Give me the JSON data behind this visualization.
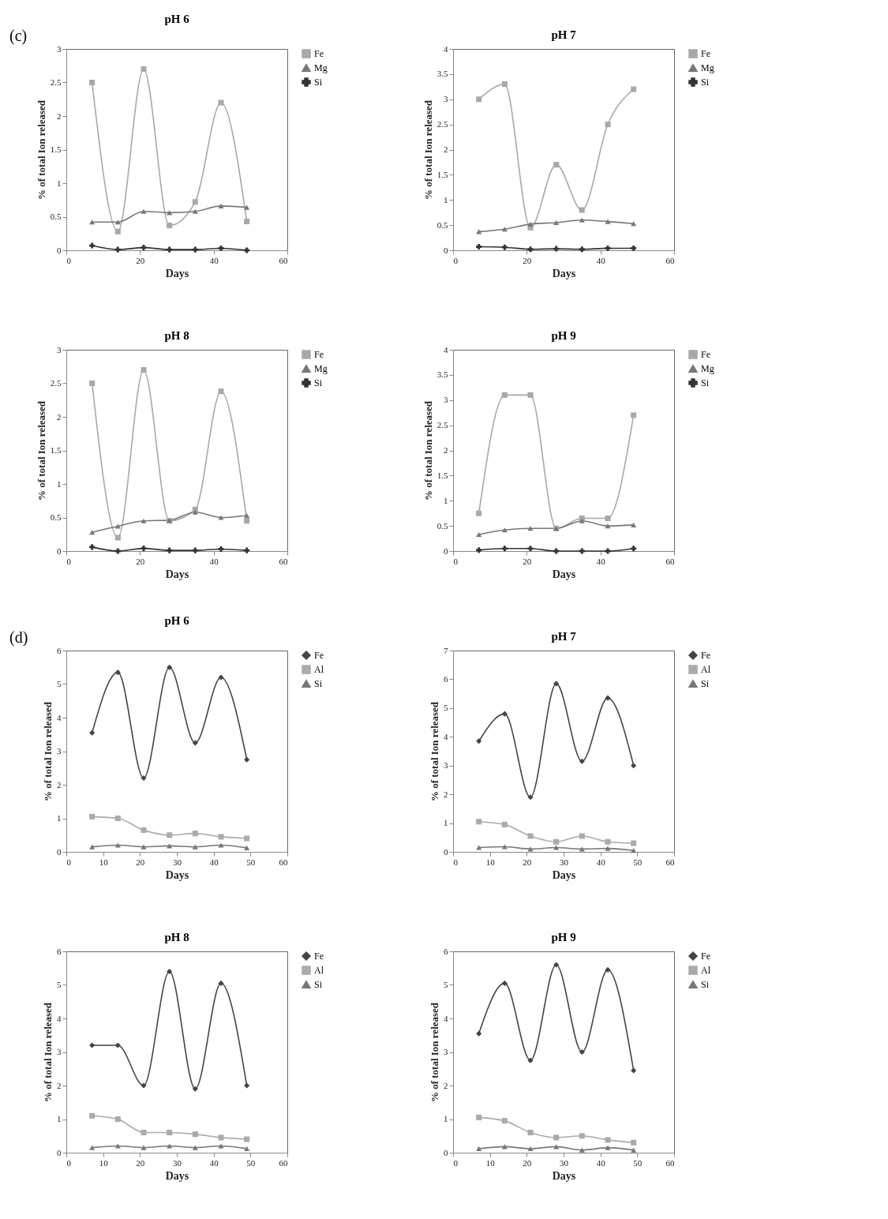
{
  "chart_data": [
    {
      "type": "line",
      "title": "pH 6",
      "xlabel": "Days",
      "ylabel": "% of total Ion released",
      "annotations": [
        "(c)"
      ],
      "x": [
        7,
        14,
        21,
        28,
        35,
        42,
        49
      ],
      "xlim": [
        0,
        60
      ],
      "xticks": [
        0,
        20,
        40,
        60
      ],
      "ylim": [
        0,
        3
      ],
      "yticks": [
        0,
        0.5,
        1,
        1.5,
        2,
        2.5,
        3
      ],
      "legend": "right",
      "series": [
        {
          "name": "Fe",
          "color": "#a8a8a8",
          "marker": "square",
          "values": [
            2.5,
            0.28,
            2.7,
            0.37,
            0.72,
            2.2,
            0.43
          ]
        },
        {
          "name": "Mg",
          "color": "#777777",
          "marker": "triangle",
          "values": [
            0.42,
            0.42,
            0.58,
            0.56,
            0.58,
            0.66,
            0.64
          ]
        },
        {
          "name": "Si",
          "color": "#333333",
          "marker": "cross",
          "values": [
            0.07,
            0.01,
            0.04,
            0.01,
            0.01,
            0.03,
            0
          ]
        }
      ]
    },
    {
      "type": "line",
      "title": "pH 7",
      "xlabel": "Days",
      "ylabel": "% of total Ion released",
      "x": [
        7,
        14,
        21,
        28,
        35,
        42,
        49
      ],
      "xlim": [
        0,
        60
      ],
      "xticks": [
        0,
        20,
        40,
        60
      ],
      "ylim": [
        0,
        4
      ],
      "yticks": [
        0,
        0.5,
        1,
        1.5,
        2,
        2.5,
        3,
        3.5,
        4
      ],
      "legend": "right",
      "series": [
        {
          "name": "Fe",
          "color": "#a8a8a8",
          "marker": "square",
          "values": [
            3.0,
            3.3,
            0.45,
            1.7,
            0.8,
            2.5,
            3.2
          ]
        },
        {
          "name": "Mg",
          "color": "#777777",
          "marker": "triangle",
          "values": [
            0.37,
            0.42,
            0.52,
            0.55,
            0.6,
            0.57,
            0.53
          ]
        },
        {
          "name": "Si",
          "color": "#333333",
          "marker": "cross",
          "values": [
            0.07,
            0.06,
            0.02,
            0.03,
            0.02,
            0.04,
            0.04
          ]
        }
      ]
    },
    {
      "type": "line",
      "title": "pH 8",
      "xlabel": "Days",
      "ylabel": "% of total Ion released",
      "x": [
        7,
        14,
        21,
        28,
        35,
        42,
        49
      ],
      "xlim": [
        0,
        60
      ],
      "xticks": [
        0,
        20,
        40,
        60
      ],
      "ylim": [
        0,
        3
      ],
      "yticks": [
        0,
        0.5,
        1,
        1.5,
        2,
        2.5,
        3
      ],
      "legend": "right",
      "series": [
        {
          "name": "Fe",
          "color": "#a8a8a8",
          "marker": "square",
          "values": [
            2.5,
            0.2,
            2.7,
            0.45,
            0.62,
            2.38,
            0.45
          ]
        },
        {
          "name": "Mg",
          "color": "#777777",
          "marker": "triangle",
          "values": [
            0.28,
            0.37,
            0.45,
            0.46,
            0.58,
            0.5,
            0.53
          ]
        },
        {
          "name": "Si",
          "color": "#333333",
          "marker": "cross",
          "values": [
            0.06,
            0,
            0.04,
            0.01,
            0.01,
            0.03,
            0.01
          ]
        }
      ]
    },
    {
      "type": "line",
      "title": "pH 9",
      "xlabel": "Days",
      "ylabel": "% of total Ion released",
      "x": [
        7,
        14,
        21,
        28,
        35,
        42,
        49
      ],
      "xlim": [
        0,
        60
      ],
      "xticks": [
        0,
        20,
        40,
        60
      ],
      "ylim": [
        0,
        4
      ],
      "yticks": [
        0,
        0.5,
        1,
        1.5,
        2,
        2.5,
        3,
        3.5,
        4
      ],
      "legend": "right",
      "series": [
        {
          "name": "Fe",
          "color": "#a8a8a8",
          "marker": "square",
          "values": [
            0.75,
            3.1,
            3.1,
            0.45,
            0.65,
            0.65,
            2.7
          ]
        },
        {
          "name": "Mg",
          "color": "#777777",
          "marker": "triangle",
          "values": [
            0.33,
            0.42,
            0.45,
            0.45,
            0.6,
            0.5,
            0.52
          ]
        },
        {
          "name": "Si",
          "color": "#333333",
          "marker": "cross",
          "values": [
            0.02,
            0.05,
            0.05,
            0,
            0,
            0,
            0.05
          ]
        }
      ]
    },
    {
      "type": "line",
      "title": "pH 6",
      "xlabel": "Days",
      "ylabel": "% of total Ion released",
      "annotations": [
        "(d)"
      ],
      "x": [
        7,
        14,
        21,
        28,
        35,
        42,
        49
      ],
      "xlim": [
        0,
        60
      ],
      "xticks": [
        0,
        10,
        20,
        30,
        40,
        50,
        60
      ],
      "ylim": [
        0,
        6
      ],
      "yticks": [
        0,
        1,
        2,
        3,
        4,
        5,
        6
      ],
      "legend": "right",
      "series": [
        {
          "name": "Fe",
          "color": "#444444",
          "marker": "diamond",
          "values": [
            3.55,
            5.35,
            2.2,
            5.5,
            3.25,
            5.2,
            2.75
          ]
        },
        {
          "name": "Al",
          "color": "#aaaaaa",
          "marker": "square",
          "values": [
            1.05,
            1.0,
            0.65,
            0.5,
            0.55,
            0.45,
            0.4
          ]
        },
        {
          "name": "Si",
          "color": "#777777",
          "marker": "triangle",
          "values": [
            0.15,
            0.2,
            0.15,
            0.18,
            0.15,
            0.2,
            0.12
          ]
        }
      ]
    },
    {
      "type": "line",
      "title": "pH 7",
      "xlabel": "Days",
      "ylabel": "% of total Ion released",
      "x": [
        7,
        14,
        21,
        28,
        35,
        42,
        49
      ],
      "xlim": [
        0,
        60
      ],
      "xticks": [
        0,
        10,
        20,
        30,
        40,
        50,
        60
      ],
      "ylim": [
        0,
        7
      ],
      "yticks": [
        0,
        1,
        2,
        3,
        4,
        5,
        6,
        7
      ],
      "legend": "right",
      "series": [
        {
          "name": "Fe",
          "color": "#444444",
          "marker": "diamond",
          "values": [
            3.85,
            4.8,
            1.9,
            5.85,
            3.15,
            5.35,
            3.0
          ]
        },
        {
          "name": "Al",
          "color": "#aaaaaa",
          "marker": "square",
          "values": [
            1.05,
            0.95,
            0.55,
            0.35,
            0.55,
            0.35,
            0.3
          ]
        },
        {
          "name": "Si",
          "color": "#777777",
          "marker": "triangle",
          "values": [
            0.15,
            0.18,
            0.1,
            0.15,
            0.1,
            0.12,
            0.05
          ]
        }
      ]
    },
    {
      "type": "line",
      "title": "pH 8",
      "xlabel": "Days",
      "ylabel": "% of total Ion released",
      "x": [
        7,
        14,
        21,
        28,
        35,
        42,
        49
      ],
      "xlim": [
        0,
        60
      ],
      "xticks": [
        0,
        10,
        20,
        30,
        40,
        50,
        60
      ],
      "ylim": [
        0,
        6
      ],
      "yticks": [
        0,
        1,
        2,
        3,
        4,
        5,
        6
      ],
      "legend": "right",
      "series": [
        {
          "name": "Fe",
          "color": "#444444",
          "marker": "diamond",
          "values": [
            3.2,
            3.2,
            2.0,
            5.4,
            1.9,
            5.05,
            2.0
          ]
        },
        {
          "name": "Al",
          "color": "#aaaaaa",
          "marker": "square",
          "values": [
            1.1,
            1.0,
            0.6,
            0.6,
            0.55,
            0.45,
            0.4
          ]
        },
        {
          "name": "Si",
          "color": "#777777",
          "marker": "triangle",
          "values": [
            0.15,
            0.2,
            0.15,
            0.2,
            0.15,
            0.2,
            0.12
          ]
        }
      ]
    },
    {
      "type": "line",
      "title": "pH 9",
      "xlabel": "Days",
      "ylabel": "% of total Ion released",
      "x": [
        7,
        14,
        21,
        28,
        35,
        42,
        49
      ],
      "xlim": [
        0,
        60
      ],
      "xticks": [
        0,
        10,
        20,
        30,
        40,
        50,
        60
      ],
      "ylim": [
        0,
        6
      ],
      "yticks": [
        0,
        1,
        2,
        3,
        4,
        5,
        6
      ],
      "legend": "right",
      "series": [
        {
          "name": "Fe",
          "color": "#444444",
          "marker": "diamond",
          "values": [
            3.55,
            5.05,
            2.75,
            5.6,
            3.0,
            5.45,
            2.45
          ]
        },
        {
          "name": "Al",
          "color": "#aaaaaa",
          "marker": "square",
          "values": [
            1.05,
            0.95,
            0.6,
            0.45,
            0.5,
            0.38,
            0.3
          ]
        },
        {
          "name": "Si",
          "color": "#777777",
          "marker": "triangle",
          "values": [
            0.12,
            0.18,
            0.12,
            0.18,
            0.08,
            0.15,
            0.08
          ]
        }
      ]
    }
  ]
}
